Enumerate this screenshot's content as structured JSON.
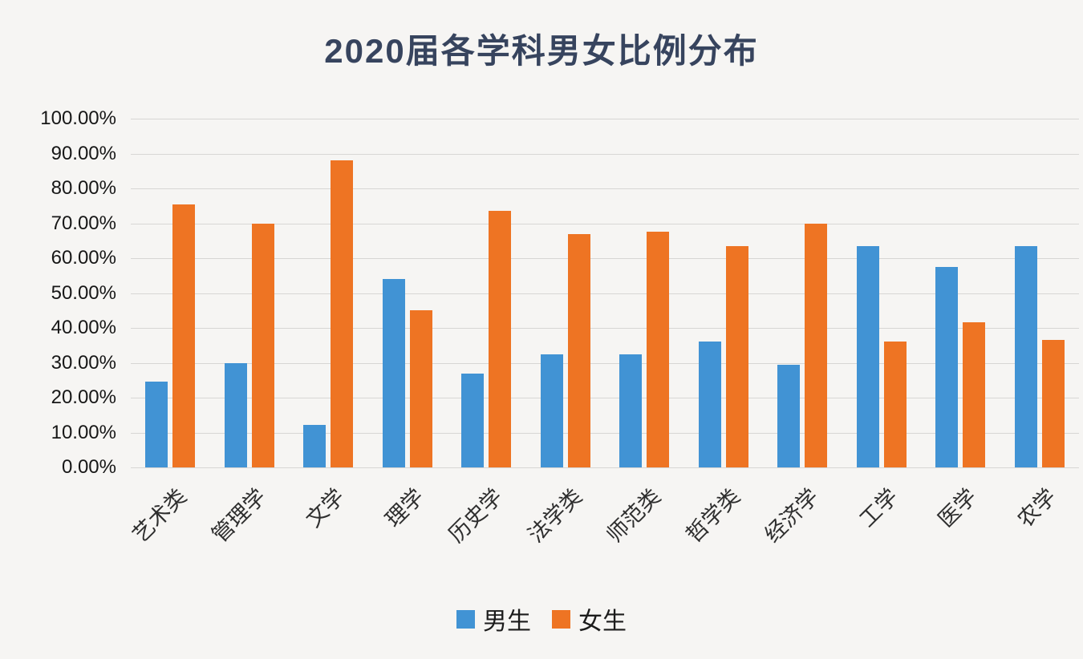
{
  "title": "2020届各学科男女比例分布",
  "colors": {
    "male_blue": "#4193d4",
    "female_orange": "#ee7423",
    "gridline": "#d7d6d4",
    "title_text": "#37445e",
    "background": "#f6f5f3"
  },
  "chart_data": {
    "type": "bar",
    "title": "2020届各学科男女比例分布",
    "categories": [
      "艺术类",
      "管理学",
      "文学",
      "理学",
      "历史学",
      "法学类",
      "师范类",
      "哲学类",
      "经济学",
      "工学",
      "医学",
      "农学"
    ],
    "series": [
      {
        "key": "male",
        "name": "男生",
        "color": "#4193d4",
        "values": [
          24.5,
          30.0,
          12.2,
          54.0,
          27.0,
          32.5,
          32.5,
          36.0,
          29.5,
          63.5,
          57.5,
          63.5
        ]
      },
      {
        "key": "female",
        "name": "女生",
        "color": "#ee7423",
        "values": [
          75.5,
          70.0,
          88.0,
          45.0,
          73.5,
          67.0,
          67.5,
          63.5,
          70.0,
          36.0,
          41.5,
          36.5
        ]
      }
    ],
    "xlabel": "",
    "ylabel": "",
    "ylim": [
      0,
      100
    ],
    "yticks": [
      "100.00%",
      "90.00%",
      "80.00%",
      "70.00%",
      "60.00%",
      "50.00%",
      "40.00%",
      "30.00%",
      "20.00%",
      "10.00%",
      "0.00%"
    ],
    "grid": true,
    "legend_position": "bottom"
  }
}
